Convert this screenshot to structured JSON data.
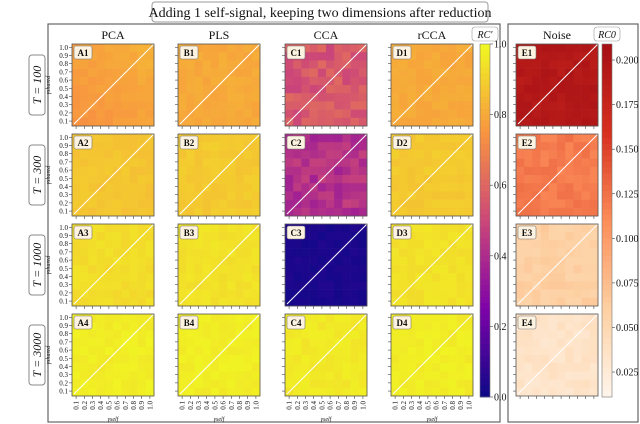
{
  "title": "Adding 1 self-signal, keeping two dimensions after reduction",
  "columns": [
    "PCA",
    "PLS",
    "CCA",
    "rCCA",
    "Noise"
  ],
  "rows": [
    "T = 100",
    "T = 300",
    "T = 1000",
    "T = 3000"
  ],
  "colorbar_main": {
    "label": "RC'",
    "ticks": [
      "0.0",
      "0.2",
      "0.4",
      "0.6",
      "0.8",
      "1.0"
    ],
    "range": [
      0,
      1
    ],
    "cmap": [
      "#0d0887",
      "#7e03a8",
      "#cc4778",
      "#f89540",
      "#f0f921"
    ]
  },
  "colorbar_noise": {
    "label": "RC0",
    "ticks": [
      "0.025",
      "0.050",
      "0.075",
      "0.100",
      "0.125",
      "0.150",
      "0.175",
      "0.200"
    ],
    "range": [
      0.011,
      0.209
    ],
    "cmap": [
      "#fff5eb",
      "#fdd0a2",
      "#fc8d59",
      "#d7301f",
      "#a50f15"
    ]
  },
  "chart_data": {
    "type": "heatmap",
    "title": "Adding 1 self-signal, keeping two dimensions after reduction",
    "xlabel": "γself",
    "ylabel": "γshared",
    "x_ticks": [
      "0.1",
      "0.2",
      "0.3",
      "0.4",
      "0.5",
      "0.6",
      "0.7",
      "0.8",
      "0.9",
      "1.0"
    ],
    "y_ticks": [
      "0.1",
      "0.2",
      "0.3",
      "0.4",
      "0.5",
      "0.6",
      "0.7",
      "0.8",
      "0.9",
      "1.0"
    ],
    "xlim": [
      0.05,
      1.0
    ],
    "ylim": [
      0.05,
      1.0
    ],
    "panels": [
      {
        "id": "A1",
        "method": "PCA",
        "T": 100,
        "mean": 0.78
      },
      {
        "id": "B1",
        "method": "PLS",
        "T": 100,
        "mean": 0.8
      },
      {
        "id": "C1",
        "method": "CCA",
        "T": 100,
        "mean": 0.55
      },
      {
        "id": "D1",
        "method": "rCCA",
        "T": 100,
        "mean": 0.8
      },
      {
        "id": "E1",
        "method": "Noise",
        "T": 100,
        "mean": 0.195
      },
      {
        "id": "A2",
        "method": "PCA",
        "T": 300,
        "mean": 0.87
      },
      {
        "id": "B2",
        "method": "PLS",
        "T": 300,
        "mean": 0.88
      },
      {
        "id": "C2",
        "method": "CCA",
        "T": 300,
        "mean": 0.42
      },
      {
        "id": "D2",
        "method": "rCCA",
        "T": 300,
        "mean": 0.88
      },
      {
        "id": "E2",
        "method": "Noise",
        "T": 300,
        "mean": 0.12
      },
      {
        "id": "A3",
        "method": "PCA",
        "T": 1000,
        "mean": 0.93
      },
      {
        "id": "B3",
        "method": "PLS",
        "T": 1000,
        "mean": 0.94
      },
      {
        "id": "C3",
        "method": "CCA",
        "T": 1000,
        "mean": 0.03
      },
      {
        "id": "D3",
        "method": "rCCA",
        "T": 1000,
        "mean": 0.94
      },
      {
        "id": "E3",
        "method": "Noise",
        "T": 1000,
        "mean": 0.06
      },
      {
        "id": "A4",
        "method": "PCA",
        "T": 3000,
        "mean": 0.97
      },
      {
        "id": "B4",
        "method": "PLS",
        "T": 3000,
        "mean": 0.97
      },
      {
        "id": "C4",
        "method": "CCA",
        "T": 3000,
        "mean": 0.96
      },
      {
        "id": "D4",
        "method": "rCCA",
        "T": 3000,
        "mean": 0.97
      },
      {
        "id": "E4",
        "method": "Noise",
        "T": 3000,
        "mean": 0.035
      }
    ]
  }
}
